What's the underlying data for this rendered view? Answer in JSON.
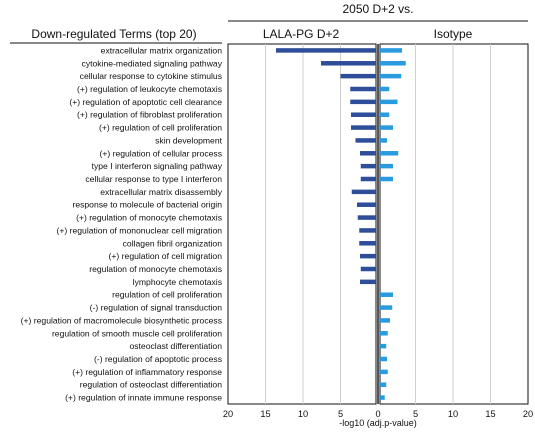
{
  "chart_data": {
    "type": "bar",
    "title": "2050 D+2 vs.",
    "terms_header": "Down-regulated Terms (top 20)",
    "xlabel": "-log10 (adj.p-value)",
    "xlim": [
      -20,
      20
    ],
    "xticks": [
      "20",
      "15",
      "10",
      "5",
      "0",
      "5",
      "10",
      "15",
      "20"
    ],
    "grid": true,
    "categories": [
      "extracellular matrix organization",
      "cytokine-mediated signaling pathway",
      "cellular response to cytokine stimulus",
      "(+) regulation of leukocyte chemotaxis",
      "(+) regulation of apoptotic cell clearance",
      "(+) regulation of fibroblast proliferation",
      "(+) regulation of cell proliferation",
      "skin development",
      "(+) regulation of cellular process",
      "type I interferon signaling pathway",
      "cellular response to type I interferon",
      "extracellular matrix disassembly",
      "response to molecule of bacterial origin",
      "(+) regulation of monocyte chemotaxis",
      "(+) regulation of mononuclear cell migration",
      "collagen fibril organization",
      "(+) regulation of cell migration",
      "regulation of monocyte chemotaxis",
      "lymphocyte chemotaxis",
      "regulation of cell proliferation",
      "(-) regulation of signal transduction",
      "(+) regulation of macromolecule biosynthetic process",
      "regulation of smooth muscle cell proliferation",
      "osteoclast differentiation",
      "(-) regulation of apoptotic process",
      "(+) regulation of inflammatory response",
      "regulation of osteoclast differentiation",
      "(+) regulation of innate immune response"
    ],
    "series": [
      {
        "name": "LALA-PG D+2",
        "color": "#2e4e9a",
        "side": "left",
        "values": [
          13.6,
          7.6,
          5.0,
          3.7,
          3.7,
          3.6,
          3.6,
          3.0,
          2.4,
          2.3,
          2.3,
          3.5,
          2.8,
          2.7,
          2.5,
          2.5,
          2.4,
          2.3,
          2.4,
          null,
          null,
          null,
          null,
          null,
          null,
          null,
          null,
          null
        ]
      },
      {
        "name": "Isotype",
        "color": "#2b9be0",
        "side": "right",
        "values": [
          3.2,
          3.7,
          3.1,
          1.5,
          2.6,
          1.5,
          2.0,
          1.2,
          2.7,
          2.0,
          2.0,
          null,
          null,
          null,
          null,
          null,
          null,
          null,
          null,
          2.0,
          1.9,
          1.6,
          1.3,
          1.1,
          1.2,
          1.3,
          1.1,
          0.9
        ]
      }
    ]
  }
}
